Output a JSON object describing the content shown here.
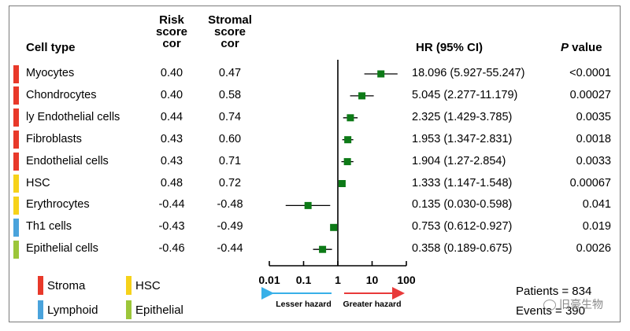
{
  "headers": {
    "cell_type": "Cell type",
    "risk_l1": "Risk",
    "risk_l2": "score",
    "risk_l3": "cor",
    "stromal_l1": "Stromal",
    "stromal_l2": "score",
    "stromal_l3": "cor",
    "hr": "HR (95% CI)",
    "p_italic": "P",
    "p_rest": " value"
  },
  "chart_data": {
    "type": "forest",
    "x_scale": "log",
    "xlim": [
      0.01,
      100
    ],
    "ticks": [
      0.01,
      0.1,
      1,
      10,
      100
    ],
    "tick_labels": [
      "0.01",
      "0.1",
      "1",
      "10",
      "100"
    ],
    "reference_line": 1,
    "rows": [
      {
        "cell": "Myocytes",
        "risk": "0.40",
        "stromal": "0.47",
        "hr_text": "18.096 (5.927-55.247)",
        "p": "<0.0001",
        "hr": 18.096,
        "lo": 5.927,
        "hi": 55.247,
        "group": "Stroma"
      },
      {
        "cell": "Chondrocytes",
        "risk": "0.40",
        "stromal": "0.58",
        "hr_text": "5.045 (2.277-11.179)",
        "p": "0.00027",
        "hr": 5.045,
        "lo": 2.277,
        "hi": 11.179,
        "group": "Stroma"
      },
      {
        "cell": "ly Endothelial cells",
        "risk": "0.44",
        "stromal": "0.74",
        "hr_text": "2.325 (1.429-3.785)",
        "p": "0.0035",
        "hr": 2.325,
        "lo": 1.429,
        "hi": 3.785,
        "group": "Stroma"
      },
      {
        "cell": "Fibroblasts",
        "risk": "0.43",
        "stromal": "0.60",
        "hr_text": "1.953 (1.347-2.831)",
        "p": "0.0018",
        "hr": 1.953,
        "lo": 1.347,
        "hi": 2.831,
        "group": "Stroma"
      },
      {
        "cell": "Endothelial cells",
        "risk": "0.43",
        "stromal": "0.71",
        "hr_text": "1.904 (1.27-2.854)",
        "p": "0.0033",
        "hr": 1.904,
        "lo": 1.27,
        "hi": 2.854,
        "group": "Stroma"
      },
      {
        "cell": "HSC",
        "risk": "0.48",
        "stromal": "0.72",
        "hr_text": "1.333 (1.147-1.548)",
        "p": "0.00067",
        "hr": 1.333,
        "lo": 1.147,
        "hi": 1.548,
        "group": "HSC"
      },
      {
        "cell": "Erythrocytes",
        "risk": "-0.44",
        "stromal": "-0.48",
        "hr_text": "0.135 (0.030-0.598)",
        "p": "0.041",
        "hr": 0.135,
        "lo": 0.03,
        "hi": 0.598,
        "group": "HSC"
      },
      {
        "cell": "Th1 cells",
        "risk": "-0.43",
        "stromal": "-0.49",
        "hr_text": "0.753 (0.612-0.927)",
        "p": "0.019",
        "hr": 0.753,
        "lo": 0.612,
        "hi": 0.927,
        "group": "Lymphoid"
      },
      {
        "cell": "Epithelial cells",
        "risk": "-0.46",
        "stromal": "-0.44",
        "hr_text": "0.358 (0.189-0.675)",
        "p": "0.0026",
        "hr": 0.358,
        "lo": 0.189,
        "hi": 0.675,
        "group": "Epithelial"
      }
    ],
    "group_colors": {
      "Stroma": "#e8392a",
      "HSC": "#f6d21a",
      "Lymphoid": "#4aa3dc",
      "Epithelial": "#9cc63a"
    },
    "marker_color": "#0d7a17",
    "lesser_label": "Lesser hazard",
    "greater_label": "Greater hazard",
    "lesser_color": "#38b0e8",
    "greater_color": "#e83a3a"
  },
  "legend": [
    {
      "label": "Stroma",
      "color": "#e8392a"
    },
    {
      "label": "HSC",
      "color": "#f6d21a"
    },
    {
      "label": "Lymphoid",
      "color": "#4aa3dc"
    },
    {
      "label": "Epithelial",
      "color": "#9cc63a"
    }
  ],
  "stats": {
    "patients": "Patients = 834",
    "events": "Events = 390"
  },
  "watermark": "旧豪生物"
}
